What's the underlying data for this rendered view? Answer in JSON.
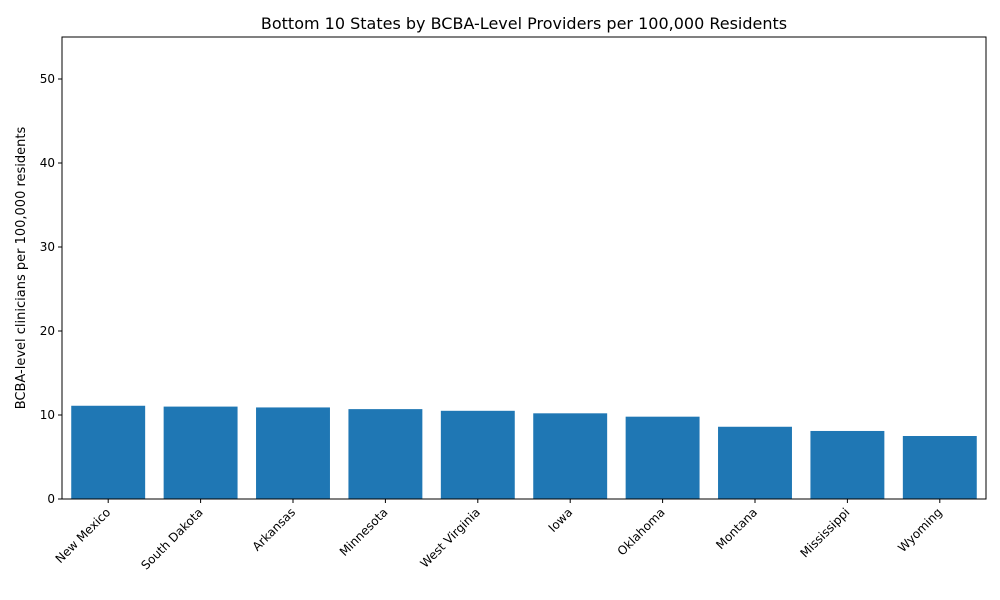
{
  "chart_data": {
    "type": "bar",
    "title": "Bottom 10 States by BCBA-Level Providers per 100,000 Residents",
    "xlabel": "",
    "ylabel": "BCBA-level clinicians per 100,000 residents",
    "ylim": [
      0,
      55
    ],
    "yticks": [
      0,
      10,
      20,
      30,
      40,
      50
    ],
    "categories": [
      "New Mexico",
      "South Dakota",
      "Arkansas",
      "Minnesota",
      "West Virginia",
      "Iowa",
      "Oklahoma",
      "Montana",
      "Mississippi",
      "Wyoming"
    ],
    "values": [
      11.1,
      11.0,
      10.9,
      10.7,
      10.5,
      10.2,
      9.8,
      8.6,
      8.1,
      7.5
    ],
    "bar_color": "#1f77b4",
    "grid": false
  }
}
